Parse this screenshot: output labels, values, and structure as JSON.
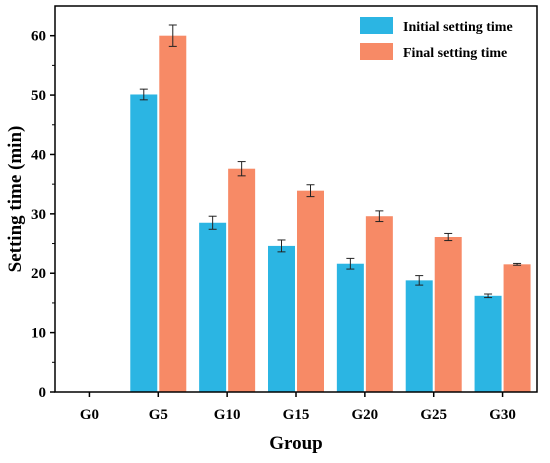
{
  "chart_data": {
    "type": "bar",
    "title": "",
    "xlabel": "Group",
    "ylabel": "Setting time (min)",
    "categories": [
      "G0",
      "G5",
      "G10",
      "G15",
      "G20",
      "G25",
      "G30"
    ],
    "ylim": [
      0,
      65
    ],
    "yticks": [
      0,
      10,
      20,
      30,
      40,
      50,
      60
    ],
    "grid": false,
    "legend_position": "top-right",
    "series": [
      {
        "name": "Initial setting time",
        "color": "#2bb5e3",
        "values": [
          0,
          50.1,
          28.5,
          24.6,
          21.6,
          18.8,
          16.2
        ],
        "errors": [
          0,
          0.9,
          1.1,
          1.0,
          0.9,
          0.8,
          0.3
        ]
      },
      {
        "name": "Final setting time",
        "color": "#f78a66",
        "values": [
          0,
          60.0,
          37.6,
          33.9,
          29.6,
          26.1,
          21.5
        ],
        "errors": [
          0,
          1.8,
          1.2,
          1.0,
          0.9,
          0.6,
          0.15
        ]
      }
    ]
  }
}
